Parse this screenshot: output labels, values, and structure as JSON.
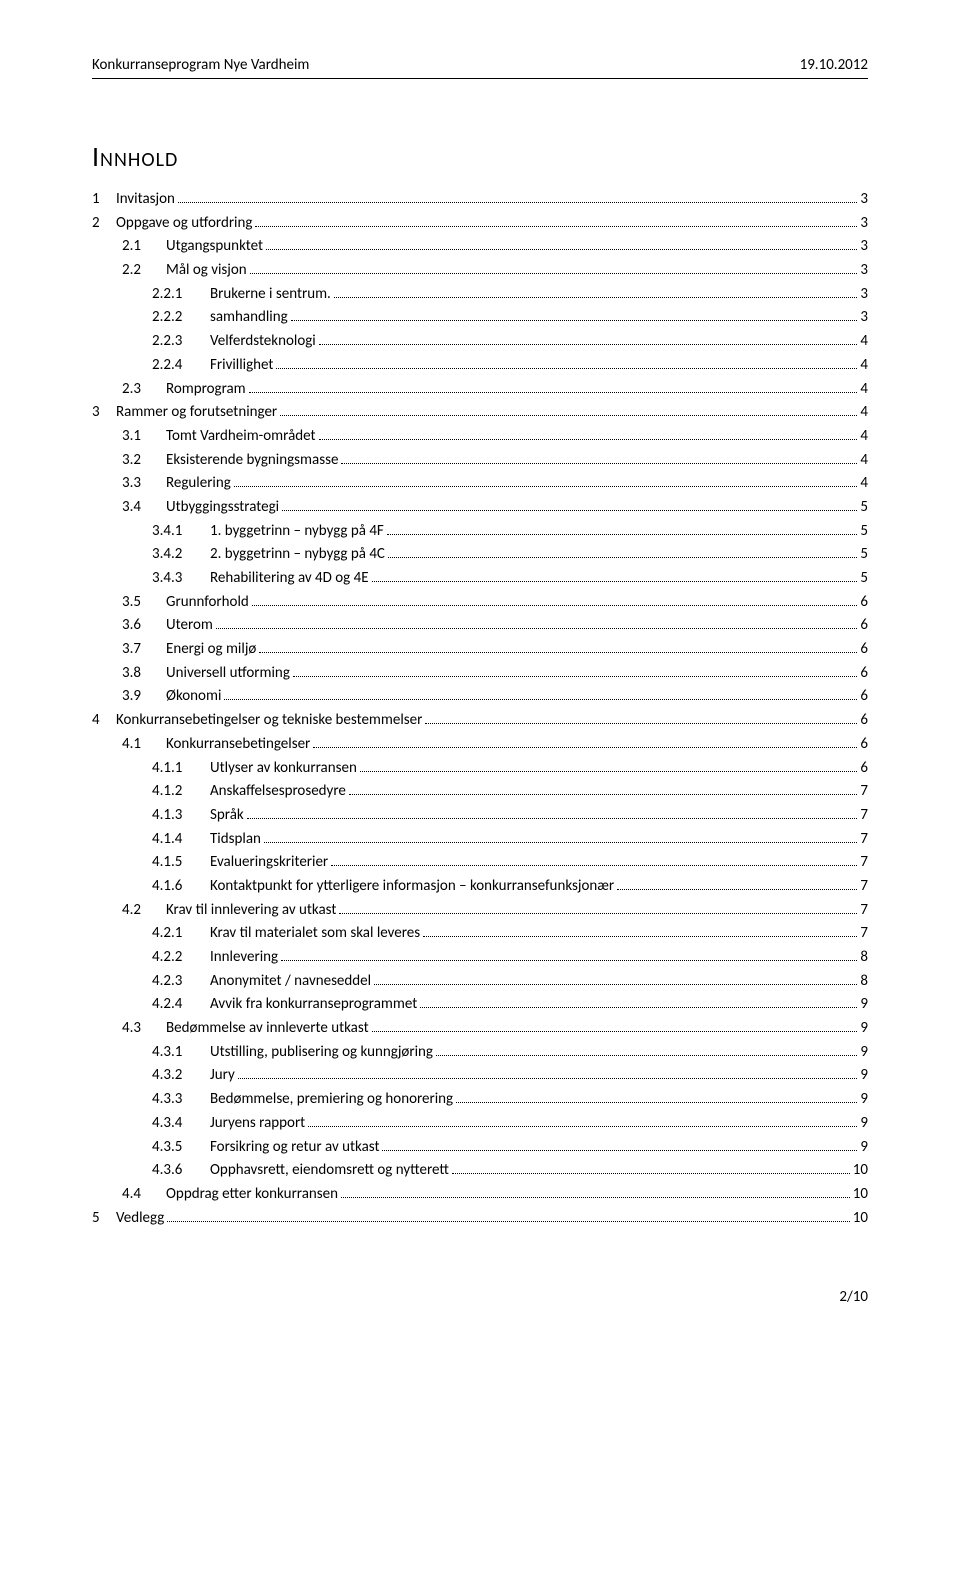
{
  "header": {
    "left": "Konkurranseprogram Nye Vardheim",
    "right": "19.10.2012"
  },
  "toc_title": "Innhold",
  "toc": [
    {
      "level": 1,
      "num": "1",
      "label": "Invitasjon",
      "page": "3"
    },
    {
      "level": 1,
      "num": "2",
      "label": "Oppgave og utfordring",
      "page": "3"
    },
    {
      "level": 2,
      "num": "2.1",
      "label": "Utgangspunktet",
      "page": "3"
    },
    {
      "level": 2,
      "num": "2.2",
      "label": "Mål og visjon",
      "page": "3"
    },
    {
      "level": 3,
      "num": "2.2.1",
      "label": "Brukerne i sentrum.",
      "page": "3"
    },
    {
      "level": 3,
      "num": "2.2.2",
      "label": "samhandling",
      "page": "3"
    },
    {
      "level": 3,
      "num": "2.2.3",
      "label": "Velferdsteknologi",
      "page": "4"
    },
    {
      "level": 3,
      "num": "2.2.4",
      "label": "Frivillighet",
      "page": "4"
    },
    {
      "level": 2,
      "num": "2.3",
      "label": "Romprogram",
      "page": "4"
    },
    {
      "level": 1,
      "num": "3",
      "label": "Rammer og forutsetninger",
      "page": "4"
    },
    {
      "level": 2,
      "num": "3.1",
      "label": "Tomt Vardheim-området",
      "page": "4"
    },
    {
      "level": 2,
      "num": "3.2",
      "label": "Eksisterende bygningsmasse",
      "page": "4"
    },
    {
      "level": 2,
      "num": "3.3",
      "label": "Regulering",
      "page": "4"
    },
    {
      "level": 2,
      "num": "3.4",
      "label": "Utbyggingsstrategi",
      "page": "5"
    },
    {
      "level": 3,
      "num": "3.4.1",
      "label": "1. byggetrinn – nybygg på 4F",
      "page": "5"
    },
    {
      "level": 3,
      "num": "3.4.2",
      "label": "2. byggetrinn – nybygg på 4C",
      "page": "5"
    },
    {
      "level": 3,
      "num": "3.4.3",
      "label": "Rehabilitering av 4D og 4E",
      "page": "5"
    },
    {
      "level": 2,
      "num": "3.5",
      "label": "Grunnforhold",
      "page": "6"
    },
    {
      "level": 2,
      "num": "3.6",
      "label": "Uterom",
      "page": "6"
    },
    {
      "level": 2,
      "num": "3.7",
      "label": "Energi og miljø",
      "page": "6"
    },
    {
      "level": 2,
      "num": "3.8",
      "label": "Universell utforming",
      "page": "6"
    },
    {
      "level": 2,
      "num": "3.9",
      "label": "Økonomi",
      "page": "6"
    },
    {
      "level": 1,
      "num": "4",
      "label": "Konkurransebetingelser og tekniske bestemmelser",
      "page": "6"
    },
    {
      "level": 2,
      "num": "4.1",
      "label": "Konkurransebetingelser",
      "page": "6"
    },
    {
      "level": 3,
      "num": "4.1.1",
      "label": "Utlyser av konkurransen",
      "page": "6"
    },
    {
      "level": 3,
      "num": "4.1.2",
      "label": "Anskaffelsesprosedyre",
      "page": "7"
    },
    {
      "level": 3,
      "num": "4.1.3",
      "label": "Språk",
      "page": "7"
    },
    {
      "level": 3,
      "num": "4.1.4",
      "label": "Tidsplan",
      "page": "7"
    },
    {
      "level": 3,
      "num": "4.1.5",
      "label": "Evalueringskriterier",
      "page": "7"
    },
    {
      "level": 3,
      "num": "4.1.6",
      "label": "Kontaktpunkt for ytterligere informasjon – konkurransefunksjonær",
      "page": "7"
    },
    {
      "level": 2,
      "num": "4.2",
      "label": "Krav til innlevering av utkast",
      "page": "7"
    },
    {
      "level": 3,
      "num": "4.2.1",
      "label": "Krav til materialet som skal leveres",
      "page": "7"
    },
    {
      "level": 3,
      "num": "4.2.2",
      "label": "Innlevering",
      "page": "8"
    },
    {
      "level": 3,
      "num": "4.2.3",
      "label": "Anonymitet / navneseddel",
      "page": "8"
    },
    {
      "level": 3,
      "num": "4.2.4",
      "label": "Avvik fra konkurranseprogrammet",
      "page": "9"
    },
    {
      "level": 2,
      "num": "4.3",
      "label": "Bedømmelse av innleverte utkast",
      "page": "9"
    },
    {
      "level": 3,
      "num": "4.3.1",
      "label": "Utstilling, publisering og kunngjøring",
      "page": "9"
    },
    {
      "level": 3,
      "num": "4.3.2",
      "label": "Jury",
      "page": "9"
    },
    {
      "level": 3,
      "num": "4.3.3",
      "label": "Bedømmelse, premiering og honorering",
      "page": "9"
    },
    {
      "level": 3,
      "num": "4.3.4",
      "label": "Juryens rapport",
      "page": "9"
    },
    {
      "level": 3,
      "num": "4.3.5",
      "label": "Forsikring og retur av utkast",
      "page": "9"
    },
    {
      "level": 3,
      "num": "4.3.6",
      "label": "Opphavsrett, eiendomsrett og nytterett",
      "page": "10"
    },
    {
      "level": 2,
      "num": "4.4",
      "label": "Oppdrag etter konkurransen",
      "page": "10"
    },
    {
      "level": 1,
      "num": "5",
      "label": "Vedlegg",
      "page": "10"
    }
  ],
  "footer": {
    "page_indicator": "2/10"
  }
}
